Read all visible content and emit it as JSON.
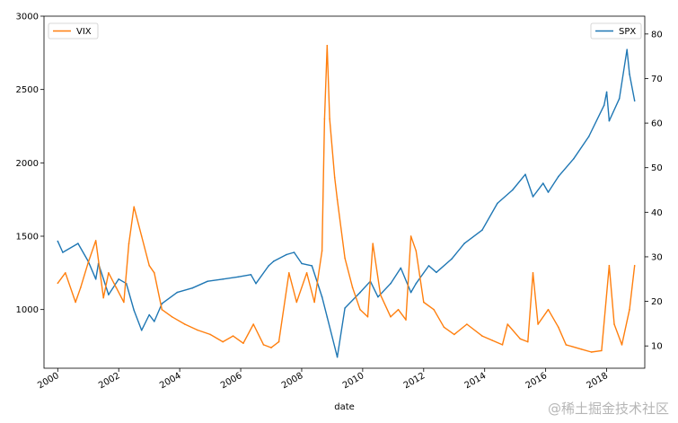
{
  "chart_data": {
    "type": "line",
    "xlabel": "date",
    "x_ticks": [
      "2000",
      "2002",
      "2004",
      "2006",
      "2008",
      "2010",
      "2012",
      "2014",
      "2016",
      "2018"
    ],
    "left_axis": {
      "ylim": [
        600,
        3000
      ],
      "ticks": [
        "1000",
        "1500",
        "2000",
        "2500",
        "3000"
      ]
    },
    "right_axis": {
      "ylim": [
        5,
        84
      ],
      "ticks": [
        "10",
        "20",
        "30",
        "40",
        "50",
        "60",
        "70",
        "80"
      ]
    },
    "grid": false,
    "series": [
      {
        "name": "VIX",
        "axis": "left",
        "color": "#ff7f0e",
        "legend_position": "top-left",
        "points": [
          [
            "2000-01",
            1180
          ],
          [
            "2000-04",
            1250
          ],
          [
            "2000-08",
            1050
          ],
          [
            "2000-10",
            1150
          ],
          [
            "2001-01",
            1320
          ],
          [
            "2001-04",
            1470
          ],
          [
            "2001-07",
            1080
          ],
          [
            "2001-09",
            1250
          ],
          [
            "2001-12",
            1150
          ],
          [
            "2002-03",
            1050
          ],
          [
            "2002-05",
            1450
          ],
          [
            "2002-07",
            1700
          ],
          [
            "2002-10",
            1500
          ],
          [
            "2003-01",
            1300
          ],
          [
            "2003-03",
            1250
          ],
          [
            "2003-06",
            1000
          ],
          [
            "2003-10",
            950
          ],
          [
            "2004-03",
            900
          ],
          [
            "2004-08",
            860
          ],
          [
            "2005-01",
            830
          ],
          [
            "2005-06",
            780
          ],
          [
            "2005-10",
            820
          ],
          [
            "2006-02",
            770
          ],
          [
            "2006-06",
            900
          ],
          [
            "2006-10",
            760
          ],
          [
            "2007-01",
            740
          ],
          [
            "2007-04",
            780
          ],
          [
            "2007-08",
            1250
          ],
          [
            "2007-11",
            1050
          ],
          [
            "2008-03",
            1250
          ],
          [
            "2008-06",
            1050
          ],
          [
            "2008-09",
            1400
          ],
          [
            "2008-10",
            2300
          ],
          [
            "2008-11",
            2800
          ],
          [
            "2008-12",
            2300
          ],
          [
            "2009-02",
            1900
          ],
          [
            "2009-03",
            1750
          ],
          [
            "2009-06",
            1350
          ],
          [
            "2009-09",
            1150
          ],
          [
            "2009-12",
            1000
          ],
          [
            "2010-03",
            950
          ],
          [
            "2010-05",
            1450
          ],
          [
            "2010-08",
            1100
          ],
          [
            "2010-12",
            950
          ],
          [
            "2011-03",
            1000
          ],
          [
            "2011-06",
            930
          ],
          [
            "2011-08",
            1500
          ],
          [
            "2011-10",
            1400
          ],
          [
            "2012-01",
            1050
          ],
          [
            "2012-05",
            1000
          ],
          [
            "2012-09",
            880
          ],
          [
            "2013-01",
            830
          ],
          [
            "2013-06",
            900
          ],
          [
            "2013-12",
            820
          ],
          [
            "2014-04",
            790
          ],
          [
            "2014-08",
            760
          ],
          [
            "2014-10",
            900
          ],
          [
            "2015-03",
            800
          ],
          [
            "2015-06",
            780
          ],
          [
            "2015-08",
            1250
          ],
          [
            "2015-10",
            900
          ],
          [
            "2016-02",
            1000
          ],
          [
            "2016-06",
            880
          ],
          [
            "2016-09",
            760
          ],
          [
            "2017-03",
            730
          ],
          [
            "2017-07",
            710
          ],
          [
            "2017-11",
            720
          ],
          [
            "2018-02",
            1300
          ],
          [
            "2018-04",
            900
          ],
          [
            "2018-07",
            760
          ],
          [
            "2018-10",
            1000
          ],
          [
            "2018-12",
            1300
          ]
        ]
      },
      {
        "name": "SPX",
        "axis": "right",
        "color": "#1f77b4",
        "legend_position": "top-right",
        "points": [
          [
            "2000-01",
            33.5
          ],
          [
            "2000-03",
            31.0
          ],
          [
            "2000-09",
            33.0
          ],
          [
            "2001-01",
            29.0
          ],
          [
            "2001-04",
            25.0
          ],
          [
            "2001-05",
            28.5
          ],
          [
            "2001-09",
            21.5
          ],
          [
            "2002-01",
            25.0
          ],
          [
            "2002-04",
            24.0
          ],
          [
            "2002-07",
            18.0
          ],
          [
            "2002-10",
            13.5
          ],
          [
            "2003-01",
            17.0
          ],
          [
            "2003-03",
            15.5
          ],
          [
            "2003-06",
            19.5
          ],
          [
            "2003-12",
            22.0
          ],
          [
            "2004-06",
            23.0
          ],
          [
            "2004-12",
            24.5
          ],
          [
            "2005-06",
            25.0
          ],
          [
            "2005-12",
            25.5
          ],
          [
            "2006-05",
            26.0
          ],
          [
            "2006-07",
            24.0
          ],
          [
            "2006-12",
            28.0
          ],
          [
            "2007-02",
            29.0
          ],
          [
            "2007-07",
            30.5
          ],
          [
            "2007-10",
            31.0
          ],
          [
            "2008-01",
            28.5
          ],
          [
            "2008-05",
            28.0
          ],
          [
            "2008-09",
            21.0
          ],
          [
            "2008-11",
            16.5
          ],
          [
            "2009-03",
            7.5
          ],
          [
            "2009-06",
            18.5
          ],
          [
            "2009-12",
            22.0
          ],
          [
            "2010-04",
            24.5
          ],
          [
            "2010-07",
            21.0
          ],
          [
            "2010-12",
            24.0
          ],
          [
            "2011-04",
            27.5
          ],
          [
            "2011-08",
            22.0
          ],
          [
            "2011-10",
            24.0
          ],
          [
            "2012-03",
            28.0
          ],
          [
            "2012-06",
            26.5
          ],
          [
            "2012-12",
            29.5
          ],
          [
            "2013-05",
            33.0
          ],
          [
            "2013-12",
            36.0
          ],
          [
            "2014-06",
            42.0
          ],
          [
            "2014-12",
            45.0
          ],
          [
            "2015-05",
            48.5
          ],
          [
            "2015-08",
            43.5
          ],
          [
            "2015-12",
            46.5
          ],
          [
            "2016-02",
            44.5
          ],
          [
            "2016-06",
            48.0
          ],
          [
            "2016-12",
            52.0
          ],
          [
            "2017-06",
            57.0
          ],
          [
            "2017-12",
            64.0
          ],
          [
            "2018-01",
            67.0
          ],
          [
            "2018-02",
            60.5
          ],
          [
            "2018-06",
            65.5
          ],
          [
            "2018-09",
            76.5
          ],
          [
            "2018-10",
            71.0
          ],
          [
            "2018-12",
            65.0
          ]
        ]
      }
    ]
  },
  "watermark": "@稀土掘金技术社区"
}
